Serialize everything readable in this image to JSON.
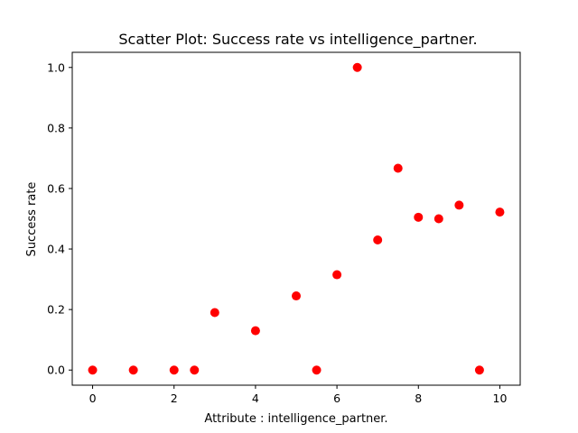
{
  "chart_data": {
    "type": "scatter",
    "title": "Scatter Plot: Success rate vs intelligence_partner.",
    "xlabel": "Attribute : intelligence_partner.",
    "ylabel": "Success rate",
    "xlim": [
      -0.5,
      10.5
    ],
    "ylim": [
      -0.05,
      1.05
    ],
    "xticks": [
      0,
      2,
      4,
      6,
      8,
      10
    ],
    "xtick_labels": [
      "0",
      "2",
      "4",
      "6",
      "8",
      "10"
    ],
    "yticks": [
      0.0,
      0.2,
      0.4,
      0.6,
      0.8,
      1.0
    ],
    "ytick_labels": [
      "0.0",
      "0.2",
      "0.4",
      "0.6",
      "0.8",
      "1.0"
    ],
    "grid": false,
    "marker_color": "#ff0000",
    "series": [
      {
        "x": [
          0,
          1,
          2,
          2.5,
          3,
          4,
          5,
          5.5,
          6,
          6.5,
          7,
          7.5,
          8,
          8.5,
          9,
          9.5,
          10
        ],
        "y": [
          0.0,
          0.0,
          0.0,
          0.0,
          0.19,
          0.13,
          0.245,
          0.0,
          0.315,
          1.0,
          0.43,
          0.667,
          0.505,
          0.5,
          0.545,
          0.0,
          0.522
        ]
      }
    ]
  }
}
